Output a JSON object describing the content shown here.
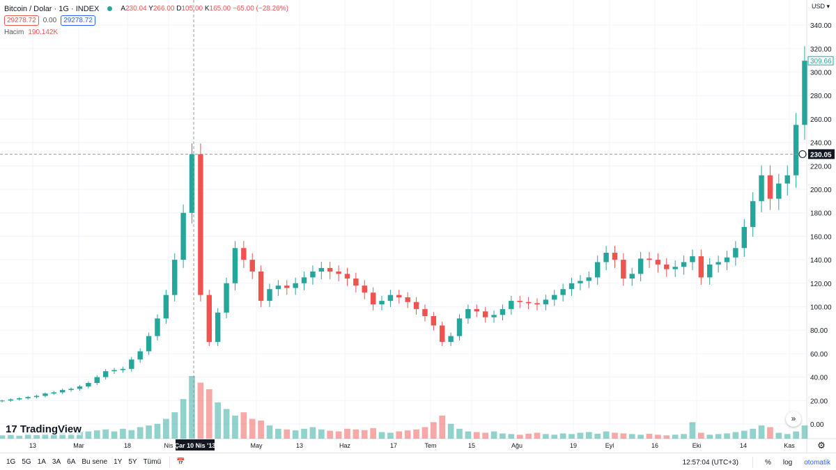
{
  "header": {
    "symbol": "Bitcoin / Dolar · 1G · INDEX",
    "open_label": "A",
    "open": "230.04",
    "high_label": "Y",
    "high": "266.00",
    "low_label": "D",
    "low": "105.00",
    "close_label": "K",
    "close": "165.00",
    "change": "−65.00 (−28.26%)",
    "sell": "29278.72",
    "spread": "0.00",
    "buy": "29278.72",
    "volume_label": "Hacim",
    "volume": "190.142K"
  },
  "logo": "TradingView",
  "price_axis": {
    "currency": "USD",
    "ticks": [
      "0.00",
      "20.00",
      "40.00",
      "60.00",
      "80.00",
      "100.00",
      "120.00",
      "140.00",
      "160.00",
      "180.00",
      "200.00",
      "220.00",
      "240.00",
      "260.00",
      "280.00",
      "300.00",
      "320.00",
      "340.00"
    ],
    "last_price": "309.66",
    "crosshair_price": "230.05"
  },
  "time_axis": {
    "ticks": [
      "13",
      "Mar",
      "18",
      "Nis",
      "May",
      "13",
      "Haz",
      "17",
      "Tem",
      "15",
      "Ağu",
      "19",
      "Eyl",
      "16",
      "Eki",
      "14",
      "Kas"
    ],
    "crosshair_date": "Çar 10 Nis '13"
  },
  "toolbar": {
    "ranges": [
      "1G",
      "5G",
      "1A",
      "3A",
      "6A",
      "Bu sene",
      "1Y",
      "5Y",
      "Tümü"
    ],
    "time": "12:57:04 (UTC+3)",
    "percent": "%",
    "log": "log",
    "auto": "otomatik"
  },
  "colors": {
    "up": "#26a69a",
    "down": "#ef5350"
  },
  "chart_data": {
    "type": "candlestick",
    "ylim": [
      0,
      345
    ],
    "grid": true,
    "scale": "linear",
    "close": [
      20,
      21,
      22,
      23,
      24,
      26,
      27,
      29,
      30,
      32,
      35,
      40,
      45,
      46,
      47,
      55,
      62,
      75,
      90,
      110,
      140,
      180,
      230,
      110,
      70,
      95,
      120,
      150,
      140,
      130,
      105,
      115,
      118,
      116,
      120,
      125,
      130,
      133,
      130,
      128,
      124,
      118,
      112,
      102,
      105,
      110,
      108,
      104,
      98,
      92,
      84,
      70,
      75,
      90,
      98,
      96,
      91,
      93,
      98,
      105,
      104,
      103,
      102,
      106,
      110,
      115,
      120,
      122,
      125,
      138,
      146,
      140,
      124,
      128,
      141,
      140,
      136,
      132,
      134,
      138,
      143,
      125,
      136,
      138,
      142,
      150,
      168,
      190,
      212,
      192,
      205,
      212,
      255,
      309.66
    ],
    "volume_k": [
      10,
      12,
      9,
      14,
      11,
      15,
      13,
      18,
      16,
      20,
      22,
      25,
      28,
      22,
      30,
      26,
      35,
      40,
      45,
      60,
      80,
      120,
      190,
      170,
      150,
      110,
      90,
      70,
      80,
      60,
      55,
      40,
      30,
      28,
      25,
      30,
      35,
      28,
      24,
      22,
      30,
      28,
      26,
      32,
      20,
      18,
      22,
      25,
      28,
      35,
      50,
      70,
      45,
      30,
      22,
      20,
      18,
      22,
      16,
      14,
      12,
      15,
      18,
      14,
      12,
      16,
      14,
      18,
      20,
      15,
      22,
      18,
      16,
      14,
      12,
      15,
      12,
      10,
      12,
      14,
      50,
      18,
      12,
      14,
      16,
      20,
      24,
      30,
      40,
      35,
      18,
      14,
      22,
      40
    ]
  }
}
